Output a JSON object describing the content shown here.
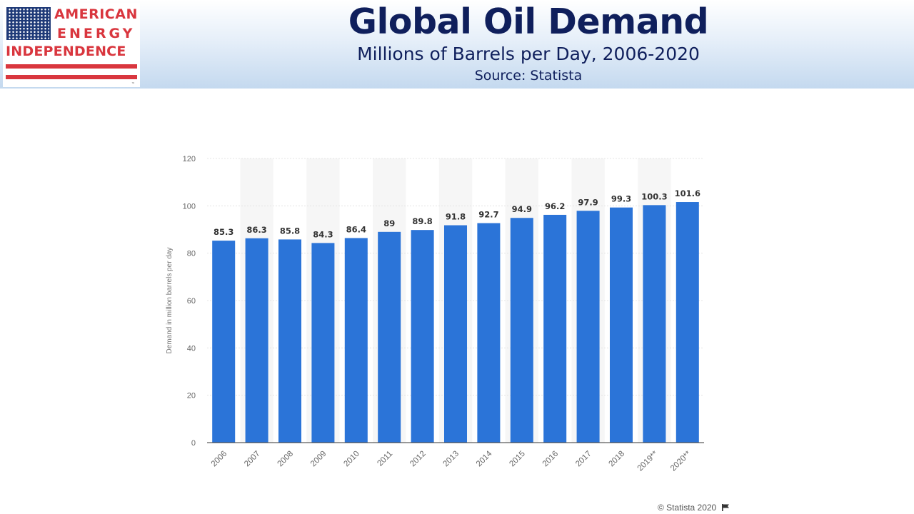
{
  "logo": {
    "line1": "AMERICAN",
    "line2": "ENERGY",
    "line3": "INDEPENDENCE",
    "trademark": "™"
  },
  "header": {
    "title": "Global Oil Demand",
    "subtitle": "Millions of Barrels per Day, 2006-2020",
    "source": "Source: Statista"
  },
  "credit": "© Statista 2020",
  "colors": {
    "bar": "#2b74d8",
    "title": "#0f1f5c",
    "logo_red": "#d9363e",
    "logo_blue": "#1f3a78"
  },
  "chart_data": {
    "type": "bar",
    "categories": [
      "2006",
      "2007",
      "2008",
      "2009",
      "2010",
      "2011",
      "2012",
      "2013",
      "2014",
      "2015",
      "2016",
      "2017",
      "2018",
      "2019**",
      "2020**"
    ],
    "values": [
      85.3,
      86.3,
      85.8,
      84.3,
      86.4,
      89,
      89.8,
      91.8,
      92.7,
      94.9,
      96.2,
      97.9,
      99.3,
      100.3,
      101.6
    ],
    "value_labels": [
      "85.3",
      "86.3",
      "85.8",
      "84.3",
      "86.4",
      "89",
      "89.8",
      "91.8",
      "92.7",
      "94.9",
      "96.2",
      "97.9",
      "99.3",
      "100.3",
      "101.6"
    ],
    "ylabel": "Demand in million barrels per day",
    "xlabel": "",
    "ylim": [
      0,
      120
    ],
    "yticks": [
      0,
      20,
      40,
      60,
      80,
      100,
      120
    ],
    "grid": true
  }
}
